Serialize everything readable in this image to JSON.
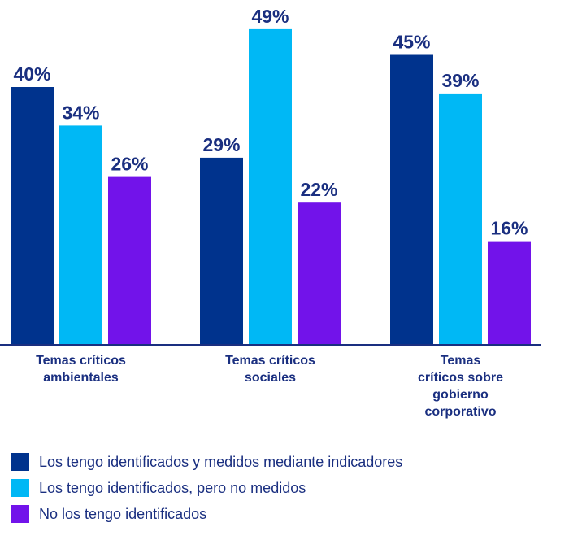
{
  "chart_data": {
    "type": "bar",
    "categories": [
      [
        "Temas críticos",
        "ambientales"
      ],
      [
        "Temas críticos",
        "sociales"
      ],
      [
        "Temas",
        "críticos sobre",
        "gobierno",
        "corporativo"
      ]
    ],
    "series": [
      {
        "name": "Los tengo identificados y medidos mediante indicadores",
        "color": "#00338d",
        "values": [
          40,
          29,
          45
        ],
        "labels": [
          "40%",
          "29%",
          "45%"
        ]
      },
      {
        "name": "Los tengo identificados, pero no medidos",
        "color": "#00b8f5",
        "values": [
          34,
          49,
          39
        ],
        "labels": [
          "34%",
          "49%",
          "39%"
        ]
      },
      {
        "name": "No los tengo identificados",
        "color": "#7213ea",
        "values": [
          26,
          22,
          16
        ],
        "labels": [
          "26%",
          "22%",
          "16%"
        ]
      }
    ],
    "ylim": [
      0,
      50
    ],
    "grid": false,
    "legend_position": "bottom"
  }
}
